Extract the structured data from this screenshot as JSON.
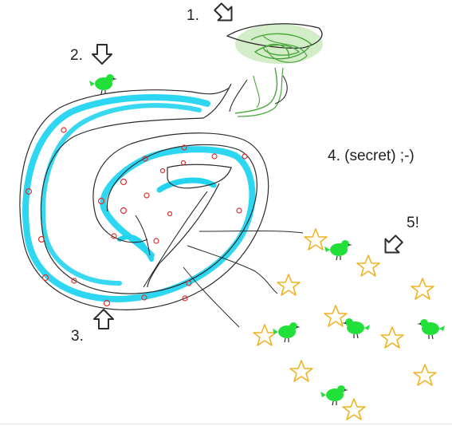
{
  "labels": {
    "one": "1.",
    "two": "2.",
    "three": "3.",
    "four": "4. (secret) ;-)",
    "five": "5!"
  },
  "colors": {
    "ink": "#2b2b2b",
    "trail": "#22d4f0",
    "tree_leaves": "#4aa63c",
    "tree_glow": "#bfe6b0",
    "bird": "#22e03a",
    "star": "#f0b323",
    "spiral_dots": "#e03030"
  },
  "icons": {
    "arrow": "down-arrow-icon",
    "bird": "bird-icon",
    "star": "star-icon",
    "tree": "tree-icon"
  }
}
